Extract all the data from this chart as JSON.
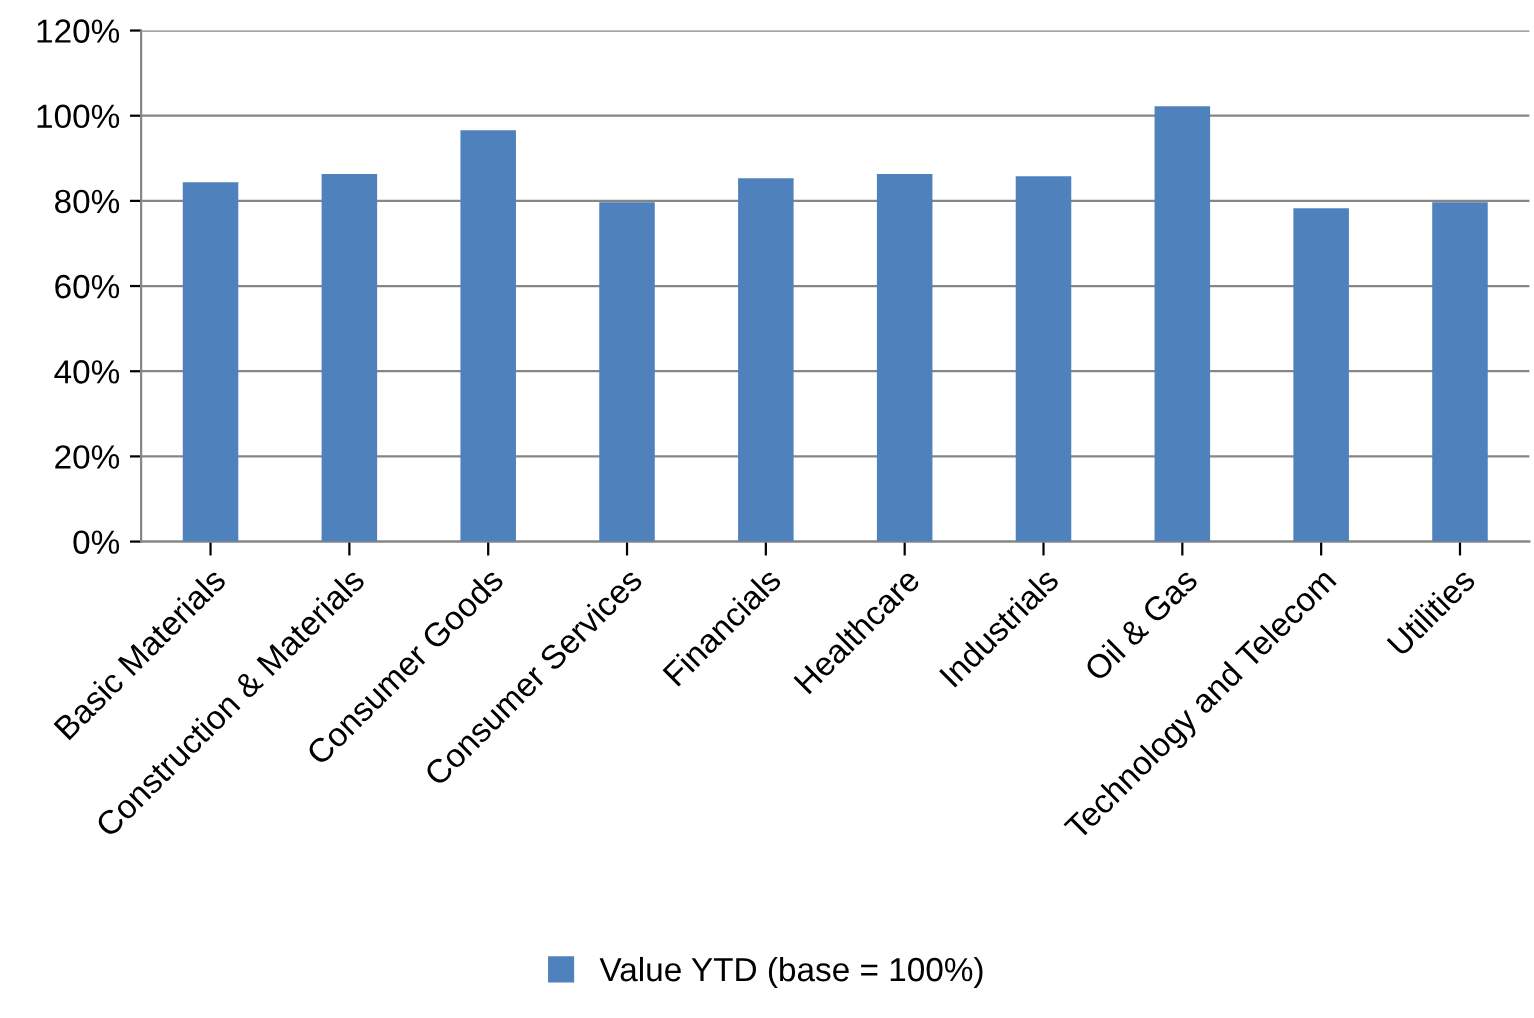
{
  "chart_data": {
    "type": "bar",
    "categories": [
      "Basic Materials",
      "Construction & Materials",
      "Consumer Goods",
      "Consumer Services",
      "Financials",
      "Healthcare",
      "Industrials",
      "Oil & Gas",
      "Technology and Telecom",
      "Utilities"
    ],
    "series": [
      {
        "name": "Value YTD (base = 100%)",
        "color": "#4f81bd",
        "values": [
          84.4,
          86.3,
          96.6,
          79.7,
          85.3,
          86.3,
          85.8,
          102.2,
          78.3,
          79.7
        ]
      }
    ],
    "ylim": [
      0,
      120
    ],
    "yticks": [
      {
        "value": 0,
        "label": "0%"
      },
      {
        "value": 20,
        "label": "20%"
      },
      {
        "value": 40,
        "label": "40%"
      },
      {
        "value": 60,
        "label": "60%"
      },
      {
        "value": 80,
        "label": "80%"
      },
      {
        "value": 100,
        "label": "100%"
      },
      {
        "value": 120,
        "label": "120%"
      }
    ],
    "grid": "y",
    "legend": "bottom"
  }
}
